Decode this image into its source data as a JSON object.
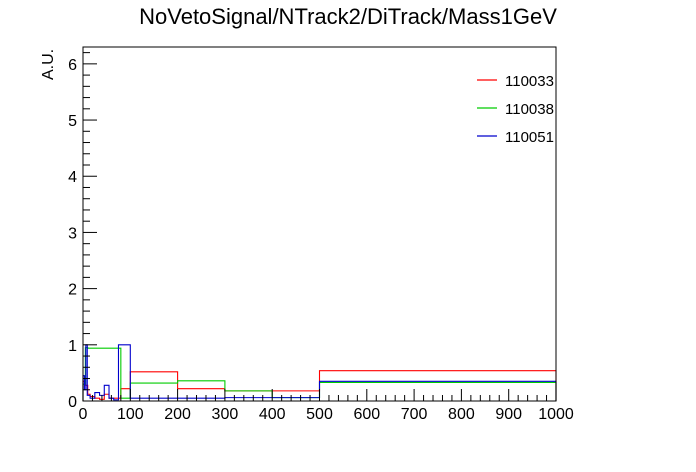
{
  "chart_data": {
    "type": "histogram",
    "title": "NoVetoSignal/NTrack2/DiTrack/Mass1GeV",
    "xlabel": "",
    "ylabel": "A.U.",
    "xlim": [
      0,
      1000
    ],
    "ylim": [
      0,
      6.3
    ],
    "xticks": [
      0,
      100,
      200,
      300,
      400,
      500,
      600,
      700,
      800,
      900,
      1000
    ],
    "yticks": [
      0,
      1,
      2,
      3,
      4,
      5,
      6
    ],
    "grid": false,
    "legend_position": "top-right",
    "series": [
      {
        "name": "110033",
        "color": "#ff0000",
        "bins": [
          [
            0,
            5,
            0.35
          ],
          [
            5,
            10,
            0.28
          ],
          [
            10,
            15,
            0.12
          ],
          [
            15,
            25,
            0.08
          ],
          [
            25,
            35,
            0.05
          ],
          [
            35,
            45,
            0.03
          ],
          [
            45,
            55,
            0.12
          ],
          [
            55,
            65,
            0.05
          ],
          [
            65,
            80,
            0.05
          ],
          [
            80,
            100,
            0.22
          ],
          [
            100,
            200,
            0.52
          ],
          [
            200,
            300,
            0.22
          ],
          [
            300,
            500,
            0.18
          ],
          [
            500,
            1000,
            0.54
          ]
        ]
      },
      {
        "name": "110038",
        "color": "#00cc00",
        "bins": [
          [
            0,
            5,
            0.3
          ],
          [
            5,
            10,
            0.95
          ],
          [
            10,
            20,
            0.94
          ],
          [
            20,
            30,
            0.94
          ],
          [
            30,
            40,
            0.94
          ],
          [
            40,
            50,
            0.94
          ],
          [
            50,
            60,
            0.94
          ],
          [
            60,
            70,
            0.94
          ],
          [
            70,
            80,
            0.94
          ],
          [
            80,
            100,
            0.05
          ],
          [
            100,
            200,
            0.32
          ],
          [
            200,
            300,
            0.36
          ],
          [
            300,
            400,
            0.18
          ],
          [
            400,
            500,
            0.06
          ],
          [
            500,
            1000,
            0.33
          ]
        ]
      },
      {
        "name": "110051",
        "color": "#0000cc",
        "bins": [
          [
            0,
            3,
            0.45
          ],
          [
            3,
            6,
            0.2
          ],
          [
            6,
            9,
            1.0
          ],
          [
            9,
            15,
            0.1
          ],
          [
            15,
            25,
            0.05
          ],
          [
            25,
            35,
            0.15
          ],
          [
            35,
            45,
            0.1
          ],
          [
            45,
            55,
            0.28
          ],
          [
            55,
            65,
            0.05
          ],
          [
            65,
            75,
            0.02
          ],
          [
            75,
            100,
            1.0
          ],
          [
            100,
            165,
            0.05
          ],
          [
            165,
            300,
            0.05
          ],
          [
            300,
            500,
            0.06
          ],
          [
            500,
            1000,
            0.35
          ]
        ]
      }
    ]
  }
}
